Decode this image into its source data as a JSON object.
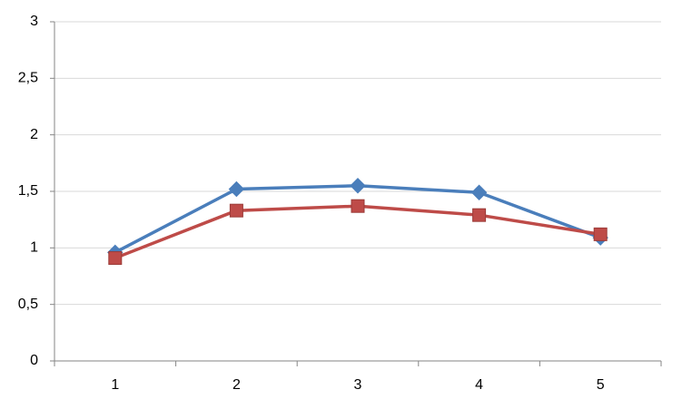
{
  "chart_data": {
    "type": "line",
    "categories": [
      "1",
      "2",
      "3",
      "4",
      "5"
    ],
    "series": [
      {
        "color": "#4a7ebb",
        "marker": "diamond",
        "values": [
          0.96,
          1.52,
          1.55,
          1.49,
          1.09
        ]
      },
      {
        "color": "#be4b48",
        "marker": "square",
        "values": [
          0.91,
          1.33,
          1.37,
          1.29,
          1.12
        ]
      }
    ],
    "ylim": [
      0,
      3
    ],
    "yticks": [
      0,
      {
        "value": 0.5,
        "label": "0,5"
      },
      1,
      {
        "value": 1.5,
        "label": "1,5"
      },
      2,
      {
        "value": 2.5,
        "label": "2,5"
      },
      3
    ],
    "grid": true
  }
}
